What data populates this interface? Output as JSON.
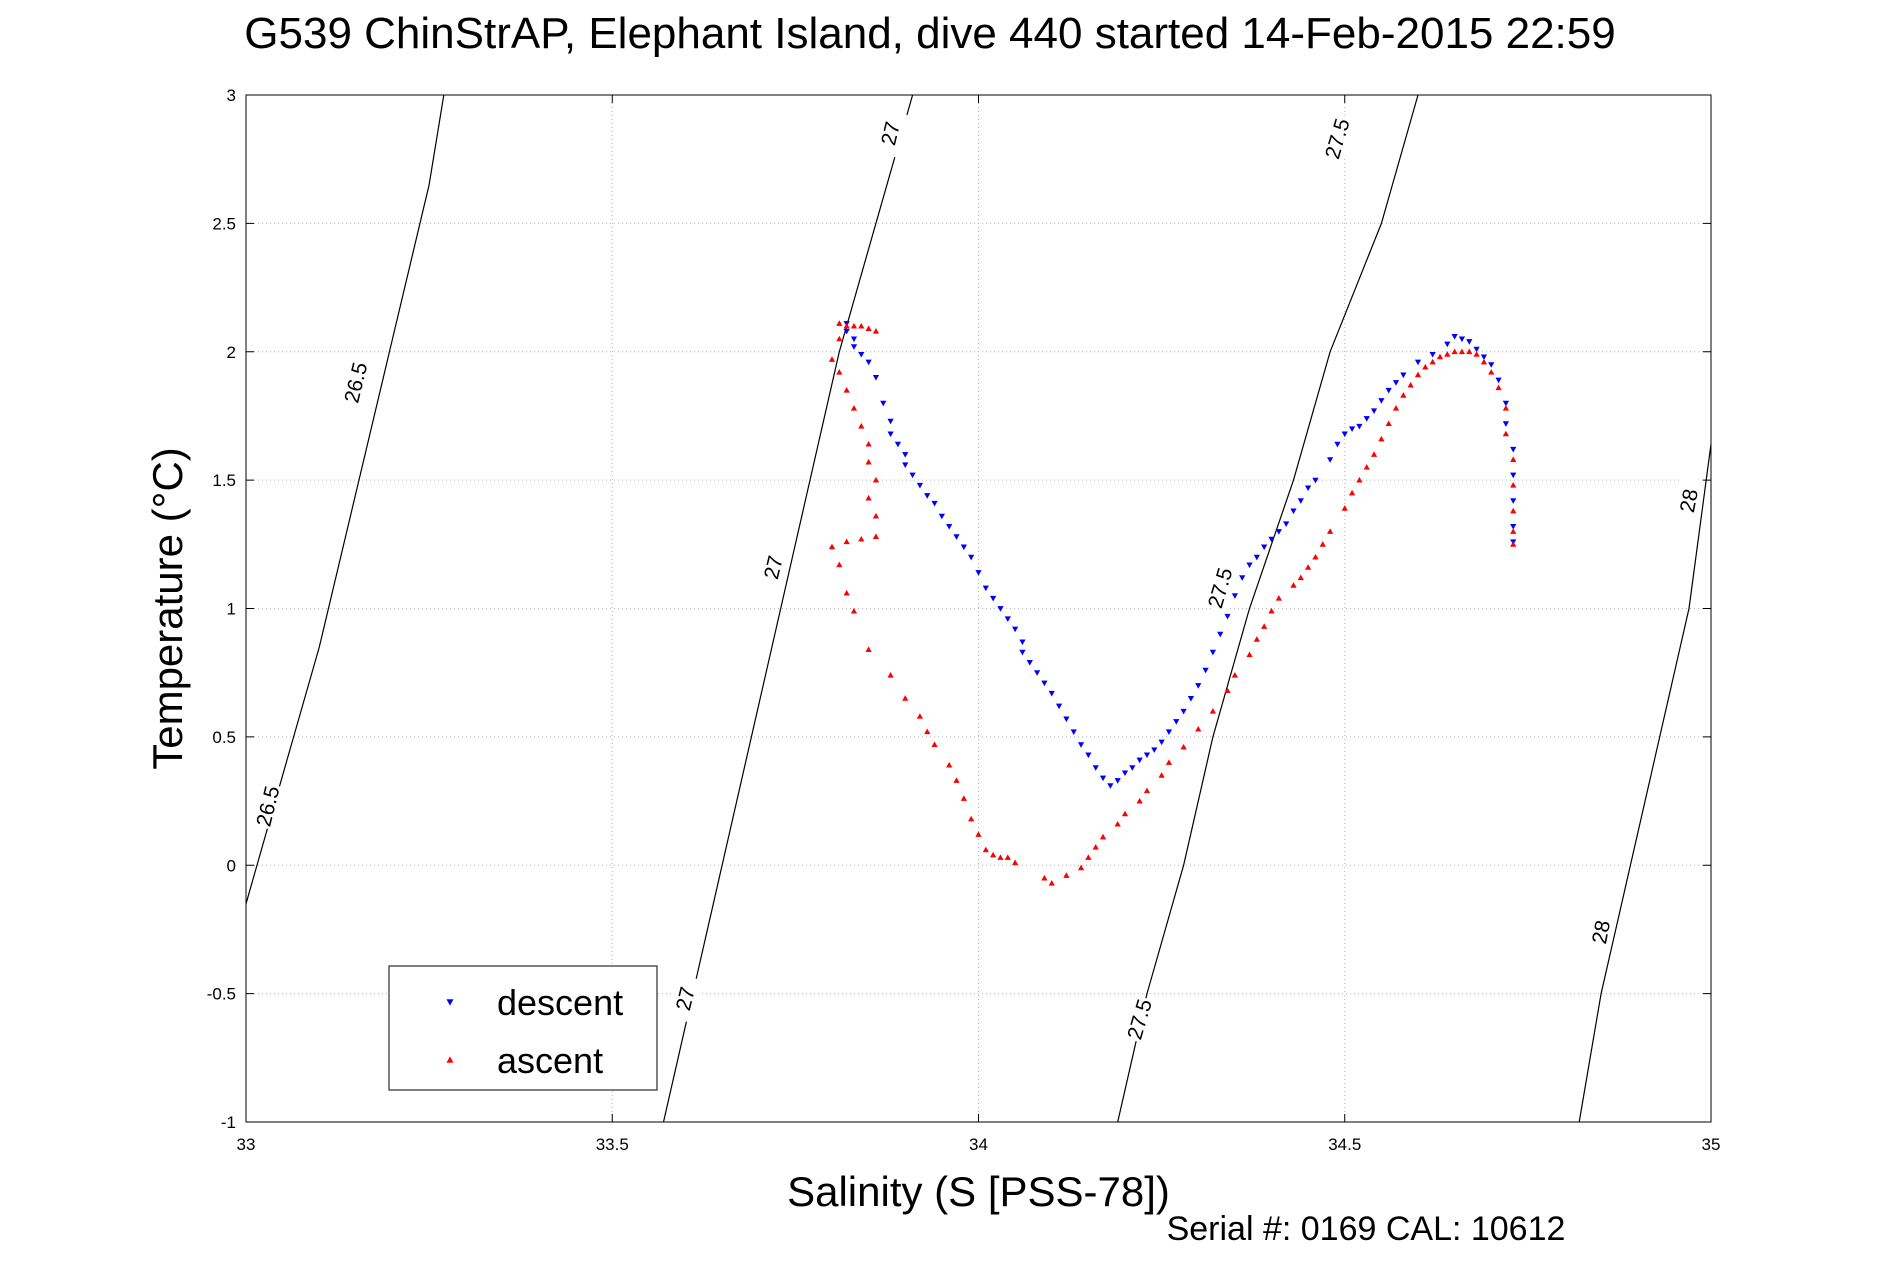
{
  "chart_data": {
    "type": "scatter",
    "title": "G539 ChinStrAP, Elephant Island, dive 440 started 14-Feb-2015 22:59",
    "xlabel": "Salinity (S [PSS-78])",
    "ylabel": "Temperature (°C)",
    "footer": "Serial #: 0169 CAL: 10612",
    "xlim": [
      33,
      35
    ],
    "ylim": [
      -1,
      3
    ],
    "xticks": [
      33,
      33.5,
      34,
      34.5,
      35
    ],
    "xtick_labels": [
      "33",
      "33.5",
      "34",
      "34.5",
      "35"
    ],
    "yticks": [
      -1,
      -0.5,
      0,
      0.5,
      1,
      1.5,
      2,
      2.5,
      3
    ],
    "ytick_labels": [
      "-1",
      "-0.5",
      "0",
      "0.5",
      "1",
      "1.5",
      "2",
      "2.5",
      "3"
    ],
    "grid": true,
    "legend_position": "bottom-left",
    "contours": [
      {
        "label": "26.5",
        "points": [
          [
            33.0,
            -0.15
          ],
          [
            33.05,
            0.35
          ],
          [
            33.1,
            0.85
          ],
          [
            33.15,
            1.45
          ],
          [
            33.2,
            2.05
          ],
          [
            33.25,
            2.65
          ],
          [
            33.27,
            3.0
          ]
        ],
        "labels": [
          {
            "x": 33.03,
            "y": 0.23
          },
          {
            "x": 33.15,
            "y": 1.88
          }
        ]
      },
      {
        "label": "27",
        "points": [
          [
            33.57,
            -1.0
          ],
          [
            33.61,
            -0.5
          ],
          [
            33.65,
            0.0
          ],
          [
            33.69,
            0.5
          ],
          [
            33.73,
            1.0
          ],
          [
            33.77,
            1.5
          ],
          [
            33.81,
            2.0
          ],
          [
            33.86,
            2.5
          ],
          [
            33.91,
            3.0
          ]
        ],
        "labels": [
          {
            "x": 33.6,
            "y": -0.52
          },
          {
            "x": 33.72,
            "y": 1.16
          },
          {
            "x": 33.88,
            "y": 2.85
          }
        ]
      },
      {
        "label": "27.5",
        "points": [
          [
            34.19,
            -1.0
          ],
          [
            34.23,
            -0.5
          ],
          [
            34.28,
            0.0
          ],
          [
            34.32,
            0.5
          ],
          [
            34.37,
            1.0
          ],
          [
            34.43,
            1.5
          ],
          [
            34.48,
            2.0
          ],
          [
            34.55,
            2.5
          ],
          [
            34.6,
            3.0
          ]
        ],
        "labels": [
          {
            "x": 34.22,
            "y": -0.6
          },
          {
            "x": 34.33,
            "y": 1.08
          },
          {
            "x": 34.49,
            "y": 2.83
          }
        ]
      },
      {
        "label": "28",
        "points": [
          [
            34.82,
            -1.0
          ],
          [
            34.85,
            -0.5
          ],
          [
            34.89,
            0.0
          ],
          [
            34.93,
            0.5
          ],
          [
            34.97,
            1.0
          ],
          [
            35.0,
            1.64
          ]
        ],
        "labels": [
          {
            "x": 34.85,
            "y": -0.26
          },
          {
            "x": 34.97,
            "y": 1.42
          }
        ]
      }
    ],
    "series": [
      {
        "name": "descent",
        "color": "#0000ff",
        "marker": "triangle-down",
        "points": [
          [
            33.82,
            2.11
          ],
          [
            33.82,
            2.08
          ],
          [
            33.83,
            2.05
          ],
          [
            33.83,
            2.02
          ],
          [
            33.84,
            1.99
          ],
          [
            33.85,
            1.96
          ],
          [
            33.86,
            1.9
          ],
          [
            33.87,
            1.8
          ],
          [
            33.88,
            1.73
          ],
          [
            33.88,
            1.68
          ],
          [
            33.89,
            1.64
          ],
          [
            33.9,
            1.6
          ],
          [
            33.9,
            1.56
          ],
          [
            33.91,
            1.52
          ],
          [
            33.92,
            1.48
          ],
          [
            33.93,
            1.44
          ],
          [
            33.94,
            1.41
          ],
          [
            33.95,
            1.36
          ],
          [
            33.96,
            1.32
          ],
          [
            33.97,
            1.28
          ],
          [
            33.98,
            1.24
          ],
          [
            33.99,
            1.2
          ],
          [
            34.0,
            1.14
          ],
          [
            34.01,
            1.08
          ],
          [
            34.02,
            1.04
          ],
          [
            34.03,
            1.0
          ],
          [
            34.04,
            0.96
          ],
          [
            34.05,
            0.92
          ],
          [
            34.06,
            0.87
          ],
          [
            34.06,
            0.83
          ],
          [
            34.07,
            0.79
          ],
          [
            34.08,
            0.75
          ],
          [
            34.09,
            0.71
          ],
          [
            34.1,
            0.67
          ],
          [
            34.11,
            0.62
          ],
          [
            34.12,
            0.57
          ],
          [
            34.13,
            0.52
          ],
          [
            34.14,
            0.47
          ],
          [
            34.15,
            0.43
          ],
          [
            34.16,
            0.38
          ],
          [
            34.17,
            0.34
          ],
          [
            34.18,
            0.31
          ],
          [
            34.19,
            0.33
          ],
          [
            34.2,
            0.36
          ],
          [
            34.21,
            0.38
          ],
          [
            34.22,
            0.41
          ],
          [
            34.23,
            0.43
          ],
          [
            34.24,
            0.45
          ],
          [
            34.25,
            0.48
          ],
          [
            34.26,
            0.52
          ],
          [
            34.27,
            0.56
          ],
          [
            34.28,
            0.6
          ],
          [
            34.29,
            0.65
          ],
          [
            34.3,
            0.7
          ],
          [
            34.31,
            0.76
          ],
          [
            34.32,
            0.83
          ],
          [
            34.33,
            0.9
          ],
          [
            34.34,
            0.97
          ],
          [
            34.35,
            1.05
          ],
          [
            34.36,
            1.12
          ],
          [
            34.37,
            1.17
          ],
          [
            34.38,
            1.2
          ],
          [
            34.39,
            1.24
          ],
          [
            34.4,
            1.27
          ],
          [
            34.41,
            1.3
          ],
          [
            34.42,
            1.33
          ],
          [
            34.43,
            1.38
          ],
          [
            34.44,
            1.42
          ],
          [
            34.45,
            1.47
          ],
          [
            34.46,
            1.5
          ],
          [
            34.48,
            1.58
          ],
          [
            34.49,
            1.64
          ],
          [
            34.5,
            1.68
          ],
          [
            34.51,
            1.7
          ],
          [
            34.52,
            1.71
          ],
          [
            34.53,
            1.74
          ],
          [
            34.54,
            1.77
          ],
          [
            34.55,
            1.81
          ],
          [
            34.56,
            1.85
          ],
          [
            34.57,
            1.88
          ],
          [
            34.58,
            1.91
          ],
          [
            34.6,
            1.96
          ],
          [
            34.62,
            1.99
          ],
          [
            34.64,
            2.03
          ],
          [
            34.65,
            2.06
          ],
          [
            34.66,
            2.05
          ],
          [
            34.67,
            2.04
          ],
          [
            34.68,
            2.01
          ],
          [
            34.69,
            1.98
          ],
          [
            34.7,
            1.95
          ],
          [
            34.71,
            1.89
          ],
          [
            34.72,
            1.8
          ],
          [
            34.72,
            1.72
          ],
          [
            34.73,
            1.62
          ],
          [
            34.73,
            1.52
          ],
          [
            34.73,
            1.42
          ],
          [
            34.73,
            1.32
          ],
          [
            34.73,
            1.26
          ]
        ]
      },
      {
        "name": "ascent",
        "color": "#ff0000",
        "marker": "triangle-up",
        "points": [
          [
            33.81,
            2.11
          ],
          [
            33.82,
            2.1
          ],
          [
            33.83,
            2.1
          ],
          [
            33.84,
            2.1
          ],
          [
            33.85,
            2.09
          ],
          [
            33.86,
            2.08
          ],
          [
            33.81,
            2.05
          ],
          [
            33.8,
            1.97
          ],
          [
            33.81,
            1.92
          ],
          [
            33.82,
            1.85
          ],
          [
            33.83,
            1.78
          ],
          [
            33.84,
            1.71
          ],
          [
            33.85,
            1.64
          ],
          [
            33.85,
            1.57
          ],
          [
            33.86,
            1.5
          ],
          [
            33.85,
            1.43
          ],
          [
            33.86,
            1.36
          ],
          [
            33.86,
            1.28
          ],
          [
            33.84,
            1.27
          ],
          [
            33.82,
            1.26
          ],
          [
            33.8,
            1.24
          ],
          [
            33.81,
            1.17
          ],
          [
            33.82,
            1.06
          ],
          [
            33.83,
            0.99
          ],
          [
            33.85,
            0.84
          ],
          [
            33.88,
            0.74
          ],
          [
            33.9,
            0.65
          ],
          [
            33.92,
            0.58
          ],
          [
            33.93,
            0.52
          ],
          [
            33.94,
            0.47
          ],
          [
            33.96,
            0.39
          ],
          [
            33.97,
            0.33
          ],
          [
            33.98,
            0.26
          ],
          [
            33.99,
            0.18
          ],
          [
            34.0,
            0.12
          ],
          [
            34.01,
            0.06
          ],
          [
            34.02,
            0.04
          ],
          [
            34.03,
            0.03
          ],
          [
            34.04,
            0.03
          ],
          [
            34.05,
            0.01
          ],
          [
            34.09,
            -0.05
          ],
          [
            34.1,
            -0.07
          ],
          [
            34.12,
            -0.04
          ],
          [
            34.14,
            -0.01
          ],
          [
            34.15,
            0.03
          ],
          [
            34.16,
            0.07
          ],
          [
            34.17,
            0.11
          ],
          [
            34.19,
            0.16
          ],
          [
            34.2,
            0.2
          ],
          [
            34.22,
            0.25
          ],
          [
            34.23,
            0.29
          ],
          [
            34.25,
            0.35
          ],
          [
            34.26,
            0.4
          ],
          [
            34.28,
            0.46
          ],
          [
            34.3,
            0.53
          ],
          [
            34.32,
            0.6
          ],
          [
            34.34,
            0.68
          ],
          [
            34.35,
            0.74
          ],
          [
            34.37,
            0.82
          ],
          [
            34.38,
            0.88
          ],
          [
            34.39,
            0.93
          ],
          [
            34.4,
            0.99
          ],
          [
            34.41,
            1.04
          ],
          [
            34.43,
            1.09
          ],
          [
            34.44,
            1.12
          ],
          [
            34.45,
            1.16
          ],
          [
            34.46,
            1.2
          ],
          [
            34.47,
            1.25
          ],
          [
            34.48,
            1.3
          ],
          [
            34.5,
            1.39
          ],
          [
            34.51,
            1.45
          ],
          [
            34.52,
            1.5
          ],
          [
            34.53,
            1.55
          ],
          [
            34.54,
            1.6
          ],
          [
            34.55,
            1.66
          ],
          [
            34.56,
            1.72
          ],
          [
            34.57,
            1.78
          ],
          [
            34.58,
            1.83
          ],
          [
            34.59,
            1.87
          ],
          [
            34.6,
            1.91
          ],
          [
            34.61,
            1.94
          ],
          [
            34.62,
            1.96
          ],
          [
            34.63,
            1.98
          ],
          [
            34.64,
            1.99
          ],
          [
            34.65,
            2.0
          ],
          [
            34.66,
            2.0
          ],
          [
            34.67,
            2.0
          ],
          [
            34.68,
            1.99
          ],
          [
            34.69,
            1.96
          ],
          [
            34.7,
            1.92
          ],
          [
            34.71,
            1.86
          ],
          [
            34.72,
            1.78
          ],
          [
            34.72,
            1.68
          ],
          [
            34.73,
            1.58
          ],
          [
            34.73,
            1.48
          ],
          [
            34.73,
            1.38
          ],
          [
            34.73,
            1.3
          ],
          [
            34.73,
            1.25
          ]
        ]
      }
    ]
  }
}
